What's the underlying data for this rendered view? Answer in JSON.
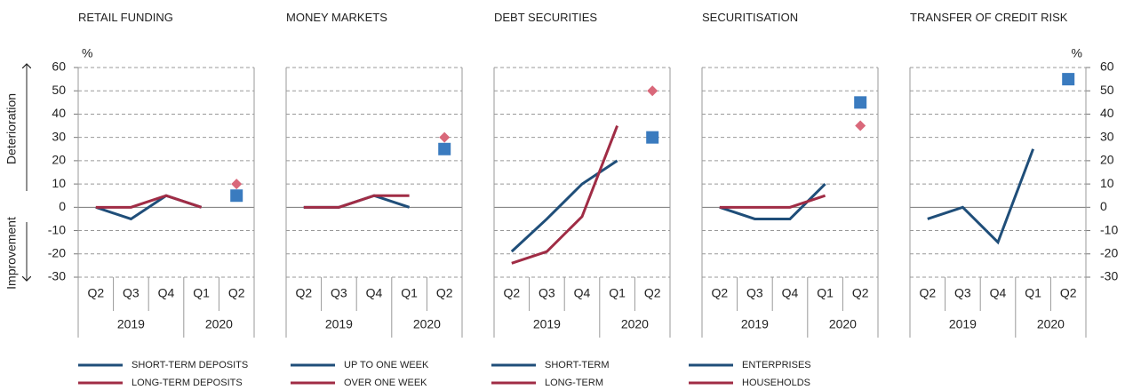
{
  "chart_data": [
    {
      "type": "line",
      "title": "RETAIL FUNDING",
      "unit": "%",
      "y_axis": "left",
      "annotations": [
        "Deterioration",
        "Improvement"
      ],
      "categories": [
        "Q2",
        "Q3",
        "Q4",
        "Q1",
        "Q2"
      ],
      "category_groups": [
        {
          "label": "2019",
          "count": 3
        },
        {
          "label": "2020",
          "count": 2
        }
      ],
      "ylim": [
        -30,
        60
      ],
      "yticks": [
        -30,
        -20,
        -10,
        0,
        10,
        20,
        30,
        40,
        50,
        60
      ],
      "grid": true,
      "series": [
        {
          "name": "SHORT-TERM DEPOSITS",
          "color": "#1f4e79",
          "marker_color": "#3a7bbf",
          "marker": "square",
          "values": [
            0,
            -5,
            5,
            0,
            null
          ],
          "marker_values": [
            null,
            null,
            null,
            null,
            5
          ]
        },
        {
          "name": "LONG-TERM DEPOSITS",
          "color": "#a02c45",
          "marker_color": "#d9687a",
          "marker": "diamond",
          "values": [
            0,
            0,
            5,
            0,
            null
          ],
          "marker_values": [
            null,
            null,
            null,
            null,
            10
          ]
        }
      ]
    },
    {
      "type": "line",
      "title": "MONEY MARKETS",
      "categories": [
        "Q2",
        "Q3",
        "Q4",
        "Q1",
        "Q2"
      ],
      "category_groups": [
        {
          "label": "2019",
          "count": 3
        },
        {
          "label": "2020",
          "count": 2
        }
      ],
      "ylim": [
        -30,
        60
      ],
      "yticks": [
        -30,
        -20,
        -10,
        0,
        10,
        20,
        30,
        40,
        50,
        60
      ],
      "grid": true,
      "series": [
        {
          "name": "UP TO ONE WEEK",
          "color": "#1f4e79",
          "marker_color": "#3a7bbf",
          "marker": "square",
          "values": [
            0,
            0,
            5,
            0,
            null
          ],
          "marker_values": [
            null,
            null,
            null,
            null,
            25
          ]
        },
        {
          "name": "OVER ONE WEEK",
          "color": "#a02c45",
          "marker_color": "#d9687a",
          "marker": "diamond",
          "values": [
            0,
            0,
            5,
            5,
            null
          ],
          "marker_values": [
            null,
            null,
            null,
            null,
            30
          ]
        }
      ]
    },
    {
      "type": "line",
      "title": "DEBT SECURITIES",
      "categories": [
        "Q2",
        "Q3",
        "Q4",
        "Q1",
        "Q2"
      ],
      "category_groups": [
        {
          "label": "2019",
          "count": 3
        },
        {
          "label": "2020",
          "count": 2
        }
      ],
      "ylim": [
        -30,
        60
      ],
      "yticks": [
        -30,
        -20,
        -10,
        0,
        10,
        20,
        30,
        40,
        50,
        60
      ],
      "grid": true,
      "series": [
        {
          "name": "SHORT-TERM",
          "color": "#1f4e79",
          "marker_color": "#3a7bbf",
          "marker": "square",
          "values": [
            -19,
            -5,
            10,
            20,
            null
          ],
          "marker_values": [
            null,
            null,
            null,
            null,
            30
          ]
        },
        {
          "name": "LONG-TERM",
          "color": "#a02c45",
          "marker_color": "#d9687a",
          "marker": "diamond",
          "values": [
            -24,
            -19,
            -4,
            35,
            null
          ],
          "marker_values": [
            null,
            null,
            null,
            null,
            50
          ]
        }
      ]
    },
    {
      "type": "line",
      "title": "SECURITISATION",
      "categories": [
        "Q2",
        "Q3",
        "Q4",
        "Q1",
        "Q2"
      ],
      "category_groups": [
        {
          "label": "2019",
          "count": 3
        },
        {
          "label": "2020",
          "count": 2
        }
      ],
      "ylim": [
        -30,
        60
      ],
      "yticks": [
        -30,
        -20,
        -10,
        0,
        10,
        20,
        30,
        40,
        50,
        60
      ],
      "grid": true,
      "series": [
        {
          "name": "ENTERPRISES",
          "color": "#1f4e79",
          "marker_color": "#3a7bbf",
          "marker": "square",
          "values": [
            0,
            -5,
            -5,
            10,
            null
          ],
          "marker_values": [
            null,
            null,
            null,
            null,
            45
          ]
        },
        {
          "name": "HOUSEHOLDS",
          "color": "#a02c45",
          "marker_color": "#d9687a",
          "marker": "diamond",
          "values": [
            0,
            0,
            0,
            5,
            null
          ],
          "marker_values": [
            null,
            null,
            null,
            null,
            35
          ]
        }
      ]
    },
    {
      "type": "line",
      "title": "TRANSFER OF CREDIT RISK",
      "unit": "%",
      "y_axis": "right",
      "categories": [
        "Q2",
        "Q3",
        "Q4",
        "Q1",
        "Q2"
      ],
      "category_groups": [
        {
          "label": "2019",
          "count": 3
        },
        {
          "label": "2020",
          "count": 2
        }
      ],
      "ylim": [
        -30,
        60
      ],
      "yticks": [
        -30,
        -20,
        -10,
        0,
        10,
        20,
        30,
        40,
        50,
        60
      ],
      "grid": true,
      "series": [
        {
          "color": "#1f4e79",
          "marker_color": "#3a7bbf",
          "marker": "square",
          "values": [
            -5,
            0,
            -15,
            25,
            null
          ],
          "marker_values": [
            null,
            null,
            null,
            null,
            55
          ]
        }
      ]
    }
  ]
}
